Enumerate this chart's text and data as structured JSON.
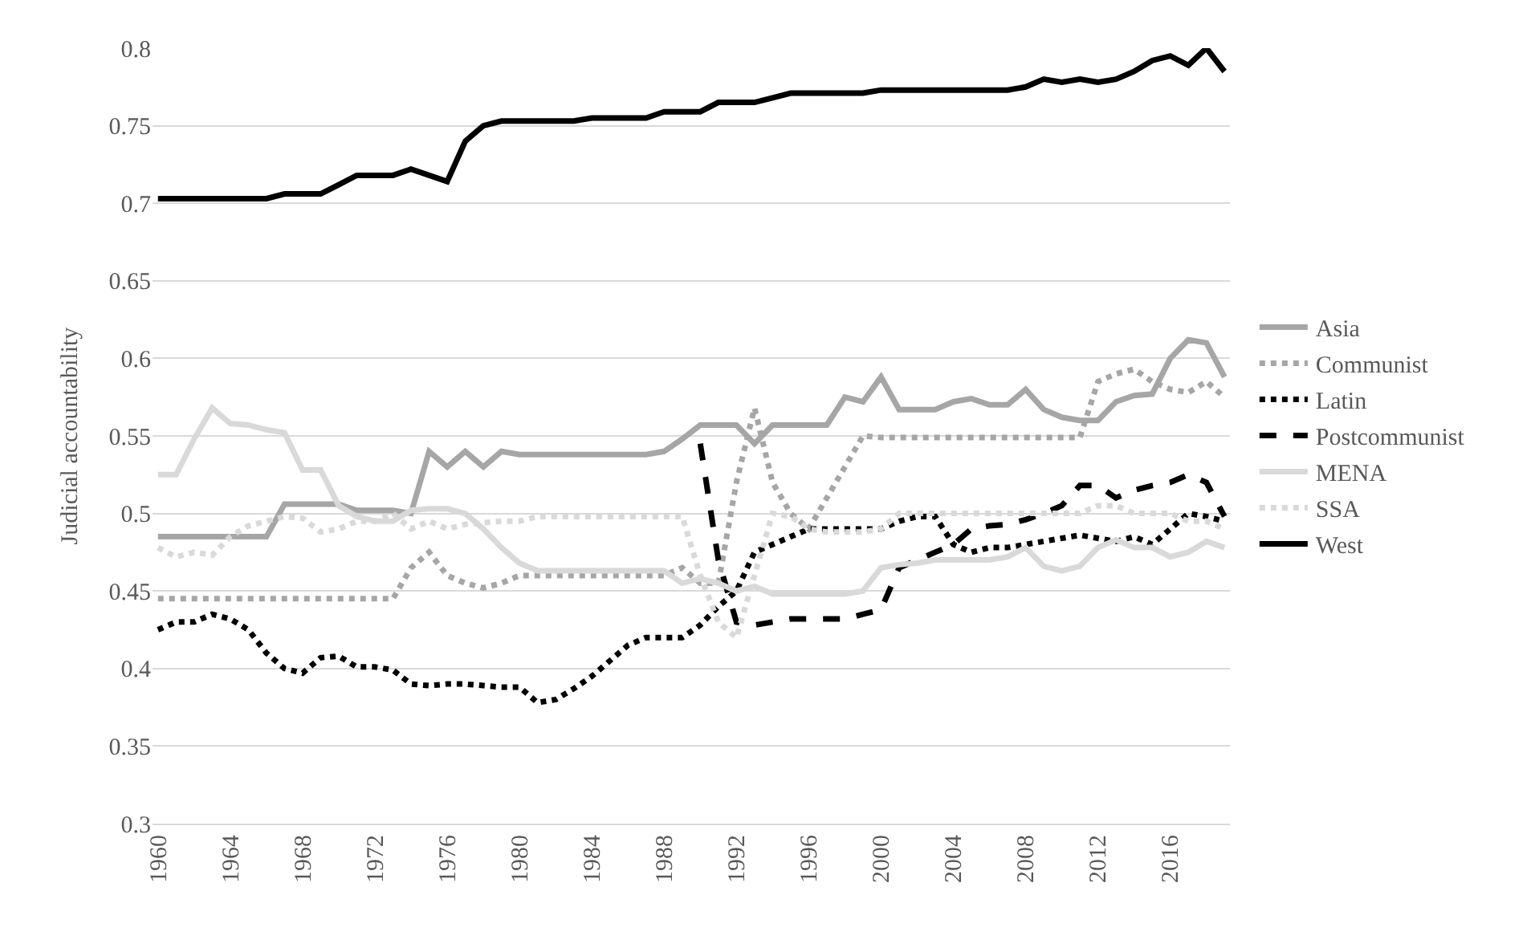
{
  "chart_data": {
    "type": "line",
    "ylabel": "Judicial accountability",
    "x": [
      1960,
      1961,
      1962,
      1963,
      1964,
      1965,
      1966,
      1967,
      1968,
      1969,
      1970,
      1971,
      1972,
      1973,
      1974,
      1975,
      1976,
      1977,
      1978,
      1979,
      1980,
      1981,
      1982,
      1983,
      1984,
      1985,
      1986,
      1987,
      1988,
      1989,
      1990,
      1991,
      1992,
      1993,
      1994,
      1995,
      1996,
      1997,
      1998,
      1999,
      2000,
      2001,
      2002,
      2003,
      2004,
      2005,
      2006,
      2007,
      2008,
      2009,
      2010,
      2011,
      2012,
      2013,
      2014,
      2015,
      2016,
      2017,
      2018,
      2019
    ],
    "xlim": [
      1959.7,
      2019.3
    ],
    "xticks": [
      1960,
      1964,
      1968,
      1972,
      1976,
      1980,
      1984,
      1988,
      1992,
      1996,
      2000,
      2004,
      2008,
      2012,
      2016
    ],
    "ylim": [
      0.3,
      0.8
    ],
    "yticks": [
      0.3,
      {
        "value": 0.35,
        "label": "0.35"
      },
      0.4,
      {
        "value": 0.45,
        "label": "0.45"
      },
      0.5,
      {
        "value": 0.55,
        "label": "0.55"
      },
      0.6,
      {
        "value": 0.65,
        "label": "0.65"
      },
      0.7,
      {
        "value": 0.75,
        "label": "0.75"
      },
      0.8
    ],
    "grid": "y",
    "legend": "right",
    "marker": "none",
    "series": [
      {
        "name": "Asia",
        "color": "#a6a6a6",
        "line_style": "solid",
        "values": [
          0.485,
          0.485,
          0.485,
          0.485,
          0.485,
          0.485,
          0.485,
          0.506,
          0.506,
          0.506,
          0.506,
          0.502,
          0.502,
          0.502,
          0.5,
          0.54,
          0.53,
          0.54,
          0.53,
          0.54,
          0.538,
          0.538,
          0.538,
          0.538,
          0.538,
          0.538,
          0.538,
          0.538,
          0.54,
          0.548,
          0.557,
          0.557,
          0.557,
          0.545,
          0.557,
          0.557,
          0.557,
          0.557,
          0.575,
          0.572,
          0.588,
          0.567,
          0.567,
          0.567,
          0.572,
          0.574,
          0.57,
          0.57,
          0.58,
          0.567,
          0.562,
          0.56,
          0.56,
          0.572,
          0.576,
          0.577,
          0.6,
          0.612,
          0.61,
          0.588
        ]
      },
      {
        "name": "Communist",
        "color": "#a6a6a6",
        "line_style": "dotted",
        "values": [
          0.445,
          0.445,
          0.445,
          0.445,
          0.445,
          0.445,
          0.445,
          0.445,
          0.445,
          0.445,
          0.445,
          0.445,
          0.445,
          0.445,
          0.465,
          0.475,
          0.46,
          0.455,
          0.452,
          0.455,
          0.46,
          0.46,
          0.46,
          0.46,
          0.46,
          0.46,
          0.46,
          0.46,
          0.46,
          0.465,
          0.455,
          0.455,
          0.52,
          0.568,
          0.52,
          0.5,
          0.49,
          0.51,
          0.53,
          0.55,
          0.549,
          0.549,
          0.549,
          0.549,
          0.549,
          0.549,
          0.549,
          0.549,
          0.549,
          0.549,
          0.549,
          0.549,
          0.585,
          0.59,
          0.593,
          0.585,
          0.58,
          0.578,
          0.585,
          0.575
        ]
      },
      {
        "name": "Latin",
        "color": "#000000",
        "line_style": "dotted",
        "values": [
          0.425,
          0.43,
          0.43,
          0.435,
          0.432,
          0.425,
          0.41,
          0.4,
          0.397,
          0.407,
          0.408,
          0.401,
          0.401,
          0.399,
          0.39,
          0.389,
          0.39,
          0.39,
          0.389,
          0.388,
          0.388,
          0.378,
          0.38,
          0.387,
          0.395,
          0.405,
          0.415,
          0.42,
          0.42,
          0.42,
          0.428,
          0.44,
          0.45,
          0.475,
          0.48,
          0.485,
          0.49,
          0.49,
          0.49,
          0.49,
          0.49,
          0.495,
          0.498,
          0.498,
          0.48,
          0.475,
          0.478,
          0.478,
          0.48,
          0.482,
          0.484,
          0.486,
          0.484,
          0.482,
          0.485,
          0.48,
          0.49,
          0.5,
          0.498,
          0.495
        ]
      },
      {
        "name": "Postcommunist",
        "color": "#000000",
        "line_style": "dashed",
        "x": [
          1990,
          1991,
          1992,
          1993,
          1994,
          1995,
          1996,
          1997,
          1998,
          1999,
          2000,
          2001,
          2002,
          2003,
          2004,
          2005,
          2006,
          2007,
          2008,
          2009,
          2010,
          2011,
          2012,
          2013,
          2014,
          2015,
          2016,
          2017,
          2018,
          2019
        ],
        "values": [
          0.545,
          0.47,
          0.43,
          0.428,
          0.43,
          0.432,
          0.432,
          0.432,
          0.432,
          0.435,
          0.438,
          0.465,
          0.47,
          0.475,
          0.48,
          0.49,
          0.492,
          0.493,
          0.496,
          0.5,
          0.505,
          0.518,
          0.518,
          0.51,
          0.515,
          0.518,
          0.52,
          0.525,
          0.52,
          0.498
        ]
      },
      {
        "name": "MENA",
        "color": "#d9d9d9",
        "line_style": "solid",
        "values": [
          0.525,
          0.525,
          0.548,
          0.568,
          0.558,
          0.557,
          0.554,
          0.552,
          0.528,
          0.528,
          0.505,
          0.498,
          0.495,
          0.495,
          0.502,
          0.503,
          0.503,
          0.5,
          0.49,
          0.478,
          0.468,
          0.463,
          0.463,
          0.463,
          0.463,
          0.463,
          0.463,
          0.463,
          0.463,
          0.455,
          0.458,
          0.455,
          0.45,
          0.453,
          0.448,
          0.448,
          0.448,
          0.448,
          0.448,
          0.45,
          0.465,
          0.467,
          0.468,
          0.47,
          0.47,
          0.47,
          0.47,
          0.472,
          0.478,
          0.466,
          0.463,
          0.466,
          0.478,
          0.483,
          0.478,
          0.478,
          0.472,
          0.475,
          0.482,
          0.478
        ]
      },
      {
        "name": "SSA",
        "color": "#d9d9d9",
        "line_style": "dotted",
        "values": [
          0.478,
          0.472,
          0.475,
          0.473,
          0.485,
          0.492,
          0.495,
          0.498,
          0.497,
          0.488,
          0.49,
          0.495,
          0.495,
          0.5,
          0.49,
          0.495,
          0.49,
          0.493,
          0.494,
          0.495,
          0.495,
          0.498,
          0.498,
          0.498,
          0.498,
          0.498,
          0.498,
          0.498,
          0.498,
          0.498,
          0.46,
          0.43,
          0.42,
          0.46,
          0.5,
          0.498,
          0.49,
          0.488,
          0.488,
          0.488,
          0.49,
          0.5,
          0.5,
          0.5,
          0.5,
          0.5,
          0.5,
          0.5,
          0.5,
          0.5,
          0.5,
          0.5,
          0.505,
          0.505,
          0.5,
          0.5,
          0.5,
          0.495,
          0.495,
          0.49
        ]
      },
      {
        "name": "West",
        "color": "#000000",
        "line_style": "solid",
        "values": [
          0.703,
          0.703,
          0.703,
          0.703,
          0.703,
          0.703,
          0.703,
          0.706,
          0.706,
          0.706,
          0.712,
          0.718,
          0.718,
          0.718,
          0.722,
          0.718,
          0.714,
          0.74,
          0.75,
          0.753,
          0.753,
          0.753,
          0.753,
          0.753,
          0.755,
          0.755,
          0.755,
          0.755,
          0.759,
          0.759,
          0.759,
          0.765,
          0.765,
          0.765,
          0.768,
          0.771,
          0.771,
          0.771,
          0.771,
          0.771,
          0.773,
          0.773,
          0.773,
          0.773,
          0.773,
          0.773,
          0.773,
          0.773,
          0.775,
          0.78,
          0.778,
          0.78,
          0.778,
          0.78,
          0.785,
          0.792,
          0.795,
          0.789,
          0.8,
          0.785
        ]
      }
    ]
  }
}
